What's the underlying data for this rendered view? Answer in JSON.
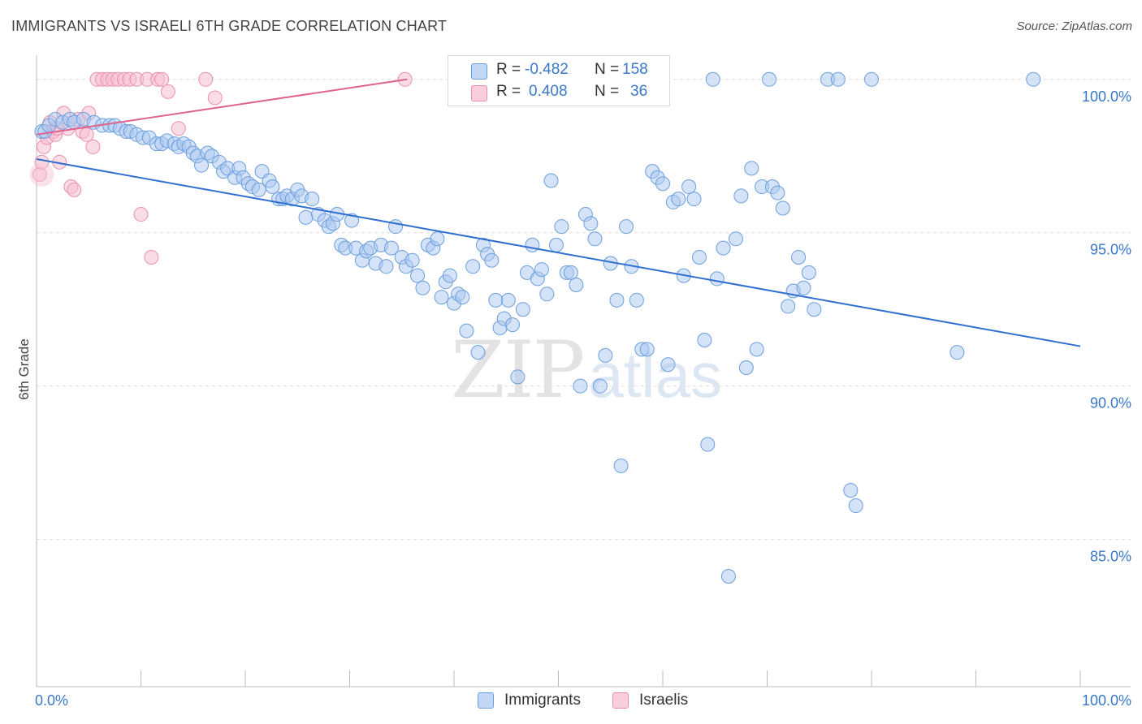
{
  "header": {
    "title": "IMMIGRANTS VS ISRAELI 6TH GRADE CORRELATION CHART",
    "source": "Source: ZipAtlas.com"
  },
  "watermark": {
    "zip": "ZIP",
    "atlas": "atlas"
  },
  "colors": {
    "immigrants_fill": "#a9c8f0",
    "immigrants_stroke": "#6c9fe0",
    "immigrants_line": "#2f6fcf",
    "israelis_fill": "#f6bfd0",
    "israelis_stroke": "#ec8fae",
    "israelis_line": "#e0628f",
    "tick_label": "#3b78c6",
    "grid": "#dddddd"
  },
  "legend_top": {
    "rows": [
      {
        "r_label": "R =",
        "r_value": "-0.482",
        "n_label": "N =",
        "n_value": "158"
      },
      {
        "r_label": "R =",
        "r_value": "0.408",
        "n_label": "N =",
        "n_value": "36"
      }
    ]
  },
  "legend_bottom": {
    "items": [
      "Immigrants",
      "Israelis"
    ]
  },
  "chart_data": {
    "type": "scatter",
    "title": "IMMIGRANTS VS ISRAELI 6TH GRADE CORRELATION CHART",
    "xlabel": "",
    "ylabel": "6th Grade",
    "xlim": [
      0,
      100
    ],
    "ylim": [
      80.2,
      101.0
    ],
    "x_tick_labels": [
      "0.0%",
      "100.0%"
    ],
    "y_ticks": [
      100,
      95,
      90,
      85
    ],
    "y_tick_labels": [
      "100.0%",
      "95.0%",
      "90.0%",
      "85.0%"
    ],
    "grid": true,
    "legend": "bottom-center",
    "series": [
      {
        "name": "Immigrants",
        "R": -0.482,
        "N": 158,
        "trendline": {
          "x": [
            0,
            100
          ],
          "y": [
            97.4,
            91.3
          ]
        },
        "points": [
          [
            0.5,
            98.3
          ],
          [
            0.8,
            98.3
          ],
          [
            1.2,
            98.5
          ],
          [
            1.8,
            98.7
          ],
          [
            2.5,
            98.6
          ],
          [
            3.2,
            98.7
          ],
          [
            3.6,
            98.6
          ],
          [
            4.5,
            98.7
          ],
          [
            5.5,
            98.6
          ],
          [
            6.3,
            98.5
          ],
          [
            7.0,
            98.5
          ],
          [
            7.5,
            98.5
          ],
          [
            8.0,
            98.4
          ],
          [
            8.6,
            98.3
          ],
          [
            9.0,
            98.3
          ],
          [
            9.6,
            98.2
          ],
          [
            10.2,
            98.1
          ],
          [
            10.8,
            98.1
          ],
          [
            11.5,
            97.9
          ],
          [
            12.0,
            97.9
          ],
          [
            12.5,
            98.0
          ],
          [
            13.2,
            97.9
          ],
          [
            13.6,
            97.8
          ],
          [
            14.1,
            97.9
          ],
          [
            14.6,
            97.8
          ],
          [
            15.0,
            97.6
          ],
          [
            15.4,
            97.5
          ],
          [
            15.8,
            97.2
          ],
          [
            16.4,
            97.6
          ],
          [
            16.8,
            97.5
          ],
          [
            17.5,
            97.3
          ],
          [
            17.9,
            97.0
          ],
          [
            18.3,
            97.1
          ],
          [
            19.0,
            96.8
          ],
          [
            19.4,
            97.1
          ],
          [
            19.8,
            96.8
          ],
          [
            20.3,
            96.6
          ],
          [
            20.7,
            96.5
          ],
          [
            21.3,
            96.4
          ],
          [
            21.6,
            97.0
          ],
          [
            22.3,
            96.7
          ],
          [
            22.6,
            96.5
          ],
          [
            23.2,
            96.1
          ],
          [
            23.6,
            96.1
          ],
          [
            24.0,
            96.2
          ],
          [
            24.5,
            96.1
          ],
          [
            25.0,
            96.4
          ],
          [
            25.4,
            96.2
          ],
          [
            25.8,
            95.5
          ],
          [
            26.4,
            96.1
          ],
          [
            27.0,
            95.6
          ],
          [
            27.6,
            95.4
          ],
          [
            28.0,
            95.2
          ],
          [
            28.4,
            95.3
          ],
          [
            28.8,
            95.6
          ],
          [
            29.2,
            94.6
          ],
          [
            29.6,
            94.5
          ],
          [
            30.2,
            95.4
          ],
          [
            30.6,
            94.5
          ],
          [
            31.2,
            94.1
          ],
          [
            31.6,
            94.4
          ],
          [
            32.0,
            94.5
          ],
          [
            32.5,
            94.0
          ],
          [
            33.0,
            94.6
          ],
          [
            33.5,
            93.9
          ],
          [
            34.0,
            94.5
          ],
          [
            34.4,
            95.2
          ],
          [
            35.0,
            94.2
          ],
          [
            35.4,
            93.9
          ],
          [
            36.0,
            94.1
          ],
          [
            36.5,
            93.6
          ],
          [
            37.0,
            93.2
          ],
          [
            37.5,
            94.6
          ],
          [
            38.0,
            94.5
          ],
          [
            38.4,
            94.8
          ],
          [
            38.8,
            92.9
          ],
          [
            39.2,
            93.4
          ],
          [
            39.6,
            93.6
          ],
          [
            40.0,
            92.7
          ],
          [
            40.4,
            93.0
          ],
          [
            40.8,
            92.9
          ],
          [
            41.2,
            91.8
          ],
          [
            41.8,
            93.9
          ],
          [
            42.3,
            91.1
          ],
          [
            42.8,
            94.6
          ],
          [
            43.2,
            94.3
          ],
          [
            43.6,
            94.1
          ],
          [
            44.0,
            92.8
          ],
          [
            44.4,
            91.9
          ],
          [
            44.8,
            92.2
          ],
          [
            45.2,
            92.8
          ],
          [
            45.6,
            92.0
          ],
          [
            46.1,
            90.3
          ],
          [
            46.6,
            92.5
          ],
          [
            47.0,
            93.7
          ],
          [
            47.5,
            94.6
          ],
          [
            48.0,
            93.5
          ],
          [
            48.4,
            93.8
          ],
          [
            48.9,
            93.0
          ],
          [
            49.3,
            96.7
          ],
          [
            49.8,
            94.6
          ],
          [
            50.3,
            95.2
          ],
          [
            50.8,
            93.7
          ],
          [
            51.2,
            93.7
          ],
          [
            51.7,
            93.3
          ],
          [
            52.1,
            90.0
          ],
          [
            52.6,
            95.6
          ],
          [
            53.1,
            95.3
          ],
          [
            53.5,
            94.8
          ],
          [
            54.0,
            90.0
          ],
          [
            54.5,
            91.0
          ],
          [
            55.0,
            94.0
          ],
          [
            55.6,
            92.8
          ],
          [
            56.0,
            87.4
          ],
          [
            56.5,
            95.2
          ],
          [
            57.0,
            93.9
          ],
          [
            57.5,
            92.8
          ],
          [
            58.0,
            91.2
          ],
          [
            58.5,
            91.2
          ],
          [
            59.0,
            97.0
          ],
          [
            59.5,
            96.8
          ],
          [
            60.0,
            96.6
          ],
          [
            60.5,
            90.7
          ],
          [
            61.0,
            96.0
          ],
          [
            61.5,
            96.1
          ],
          [
            62.0,
            93.6
          ],
          [
            62.5,
            96.5
          ],
          [
            63.0,
            96.1
          ],
          [
            63.5,
            94.2
          ],
          [
            64.0,
            91.5
          ],
          [
            64.3,
            88.1
          ],
          [
            64.8,
            100.0
          ],
          [
            65.2,
            93.5
          ],
          [
            65.8,
            94.5
          ],
          [
            66.3,
            83.8
          ],
          [
            67.0,
            94.8
          ],
          [
            67.5,
            96.2
          ],
          [
            68.0,
            90.6
          ],
          [
            68.5,
            97.1
          ],
          [
            69.0,
            91.2
          ],
          [
            69.5,
            96.5
          ],
          [
            70.2,
            100.0
          ],
          [
            70.5,
            96.5
          ],
          [
            71.0,
            96.3
          ],
          [
            71.5,
            95.8
          ],
          [
            72.0,
            92.6
          ],
          [
            72.5,
            93.1
          ],
          [
            73.0,
            94.2
          ],
          [
            73.5,
            93.2
          ],
          [
            74.0,
            93.7
          ],
          [
            74.5,
            92.5
          ],
          [
            75.8,
            100.0
          ],
          [
            76.8,
            100.0
          ],
          [
            78.0,
            86.6
          ],
          [
            78.5,
            86.1
          ],
          [
            80.0,
            100.0
          ],
          [
            88.2,
            91.1
          ],
          [
            95.5,
            100.0
          ]
        ]
      },
      {
        "name": "Israelis",
        "R": 0.408,
        "N": 36,
        "trendline": {
          "x": [
            0,
            35.5
          ],
          "y": [
            98.2,
            100.0
          ]
        },
        "points": [
          [
            0.3,
            96.9
          ],
          [
            0.5,
            97.3
          ],
          [
            0.7,
            97.8
          ],
          [
            1.0,
            98.1
          ],
          [
            1.3,
            98.6
          ],
          [
            1.6,
            98.3
          ],
          [
            1.8,
            98.2
          ],
          [
            2.2,
            97.3
          ],
          [
            2.6,
            98.9
          ],
          [
            3.0,
            98.4
          ],
          [
            3.3,
            96.5
          ],
          [
            3.6,
            96.4
          ],
          [
            4.0,
            98.7
          ],
          [
            4.4,
            98.3
          ],
          [
            4.8,
            98.2
          ],
          [
            5.0,
            98.9
          ],
          [
            5.4,
            97.8
          ],
          [
            5.8,
            100.0
          ],
          [
            6.3,
            100.0
          ],
          [
            6.8,
            100.0
          ],
          [
            7.3,
            100.0
          ],
          [
            7.8,
            100.0
          ],
          [
            8.4,
            100.0
          ],
          [
            8.9,
            100.0
          ],
          [
            9.6,
            100.0
          ],
          [
            10.0,
            95.6
          ],
          [
            10.6,
            100.0
          ],
          [
            11.0,
            94.2
          ],
          [
            11.6,
            100.0
          ],
          [
            12.0,
            100.0
          ],
          [
            12.6,
            99.6
          ],
          [
            13.6,
            98.4
          ],
          [
            16.2,
            100.0
          ],
          [
            17.1,
            99.4
          ],
          [
            35.3,
            100.0
          ],
          [
            2.0,
            98.4
          ]
        ]
      }
    ]
  }
}
